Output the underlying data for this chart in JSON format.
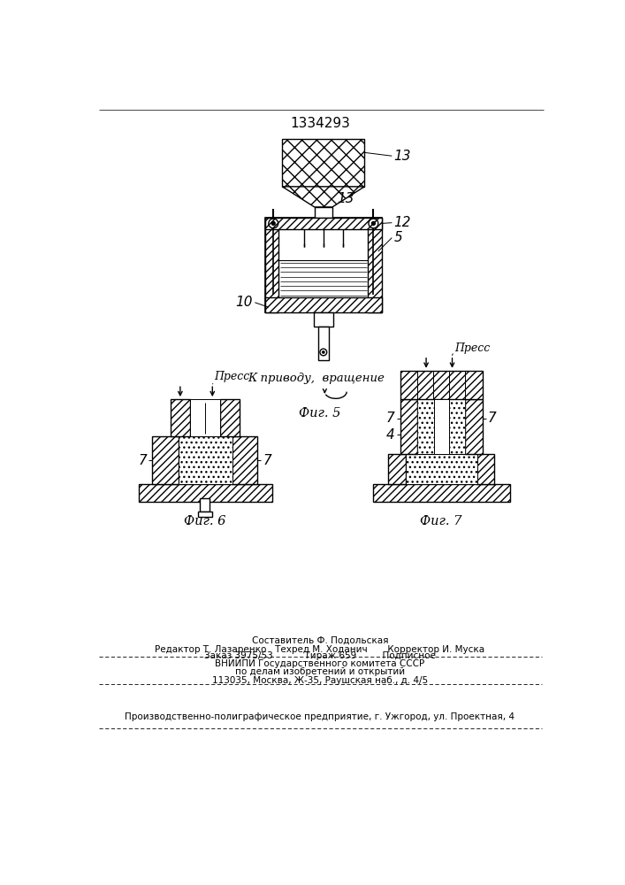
{
  "patent_number": "1334293",
  "bg_color": "#ffffff",
  "fig5_caption": "Фиг. 5",
  "fig6_caption": "Фиг. 6",
  "fig7_caption": "Фиг. 7",
  "label_13_top": "13",
  "label_13_mid": "13",
  "label_12": "12",
  "label_5": "5",
  "label_10": "10",
  "label_7a": "7",
  "label_7b": "7",
  "label_7c": "7",
  "label_7d": "7",
  "label_4": "4",
  "text_k_privodu": "К приводу,  вращение",
  "text_press1": "Пресс",
  "text_press2": "Пресс",
  "footer_line1": "Составитель Ф. Подольская",
  "footer_line2": "Редактор Т. Лазаренко   Техред М. Ходанич       Корректор И. Муска",
  "footer_line3": "Заказ 3975/53           Тираж 659         Подписное",
  "footer_line4": "ВНИИПИ Государственного комитета СССР",
  "footer_line5": "по делам изобретений и открытий",
  "footer_line6": "113035, Москва, Ж-35, Раушская наб., д. 4/5",
  "footer_line7": "Производственно-полиграфическое предприятие, г. Ужгород, ул. Проектная, 4"
}
